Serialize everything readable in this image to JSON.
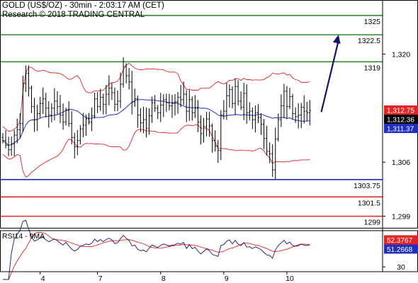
{
  "header": {
    "title": "GOLD (US$/OZ) - 30min - 2:03:17 AM (CET)",
    "copyright": "Research © 2018 TRADING CENTRAL"
  },
  "chart_data": [
    {
      "type": "candlestick",
      "title": "GOLD (US$/OZ) - 30min",
      "y_axis_position": "right",
      "ylim": [
        1297.5,
        1327
      ],
      "y_ticks": [
        1299,
        1306,
        1320
      ],
      "y_tick_labels": [
        "1,299",
        "1,306",
        "1,320"
      ],
      "x_ticks": [
        {
          "label": "4",
          "bar": 13
        },
        {
          "label": "7",
          "bar": 33
        },
        {
          "label": "8",
          "bar": 55
        },
        {
          "label": "9",
          "bar": 77
        },
        {
          "label": "10",
          "bar": 99
        }
      ],
      "bars_count": 108,
      "levels": [
        {
          "value": 1325,
          "label": "1325",
          "color": "#2e8b2e"
        },
        {
          "value": 1322.5,
          "label": "1322.5",
          "color": "#2e8b2e"
        },
        {
          "value": 1319,
          "label": "1319",
          "color": "#2e8b2e"
        },
        {
          "value": 1303.75,
          "label": "1303.75",
          "color": "#1f2fbf"
        },
        {
          "value": 1301.5,
          "label": "1301.5",
          "color": "#e32424"
        },
        {
          "value": 1299,
          "label": "1299",
          "color": "#e32424"
        }
      ],
      "price_labels": [
        {
          "value": 1312.75,
          "label": "1,312.75",
          "bg": "#e32424",
          "fg": "#ffffff"
        },
        {
          "value": 1312.36,
          "label": "1,312.36",
          "bg": "#000000",
          "fg": "#ffffff"
        },
        {
          "value": 1311.37,
          "label": "1,311.37",
          "bg": "#1f2fbf",
          "fg": "#ffffff"
        }
      ],
      "forecast_arrow": {
        "from": {
          "bar": 111,
          "value": 1312.5
        },
        "to": {
          "bar": 117,
          "value": 1322.5
        },
        "color": "#14146b"
      },
      "close": [
        1308.8,
        1308.2,
        1307.6,
        1308.4,
        1309.5,
        1310.2,
        1311.0,
        1316.2,
        1317.5,
        1315.6,
        1313.2,
        1311.5,
        1312.3,
        1313.6,
        1314.2,
        1313.0,
        1312.1,
        1313.0,
        1313.9,
        1313.2,
        1312.1,
        1311.2,
        1312.7,
        1311.0,
        1309.2,
        1308.0,
        1308.8,
        1310.3,
        1310.8,
        1311.6,
        1311.2,
        1312.0,
        1314.2,
        1313.2,
        1314.4,
        1313.5,
        1314.8,
        1315.6,
        1315.0,
        1313.5,
        1313.9,
        1316.1,
        1318.4,
        1317.2,
        1316.4,
        1313.8,
        1314.2,
        1312.1,
        1311.1,
        1311.5,
        1310.4,
        1312.0,
        1313.7,
        1313.0,
        1312.4,
        1313.4,
        1314.1,
        1313.7,
        1313.3,
        1313.6,
        1313.8,
        1314.4,
        1314.1,
        1314.8,
        1312.6,
        1314.1,
        1312.4,
        1313.0,
        1311.2,
        1309.7,
        1310.6,
        1311.6,
        1310.7,
        1308.8,
        1308.1,
        1307.5,
        1312.1,
        1312.6,
        1314.6,
        1315.4,
        1313.6,
        1315.8,
        1313.9,
        1313.1,
        1314.9,
        1312.4,
        1312.6,
        1311.5,
        1312.4,
        1311.8,
        1310.9,
        1309.1,
        1307.4,
        1307.1,
        1305.0,
        1309.0,
        1311.5,
        1313.3,
        1315.2,
        1313.2,
        1314.5,
        1312.3,
        1311.9,
        1312.1,
        1313.1,
        1312.6,
        1312.4,
        1312.7
      ],
      "overlays": [
        {
          "name": "20-period moving average",
          "color": "#1f2fbf"
        },
        {
          "name": "Bollinger bands",
          "color": "#e32424"
        }
      ]
    },
    {
      "type": "line",
      "title": "RSI14 - 9MA",
      "ylim": [
        26,
        60
      ],
      "y_ticks": [
        30
      ],
      "y_tick_labels": [
        "30"
      ],
      "value_labels": [
        {
          "value": 52.3767,
          "label": "52.3767",
          "bg": "#e32424",
          "fg": "#ffffff"
        },
        {
          "value": 51.2668,
          "label": "51.2668",
          "bg": "#1f2fbf",
          "fg": "#ffffff"
        }
      ],
      "series": [
        {
          "name": "RSI14",
          "color": "#14146b"
        },
        {
          "name": "9MA",
          "color": "#e32424"
        }
      ]
    }
  ]
}
